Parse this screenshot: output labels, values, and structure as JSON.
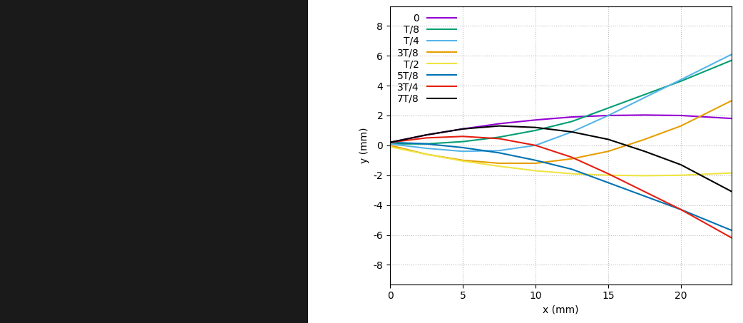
{
  "chart_data": {
    "type": "line",
    "x_label": "x (mm)",
    "y_label": "y (mm)",
    "x": [
      0,
      2.5,
      5,
      7.5,
      10,
      12.5,
      15,
      17.5,
      20,
      23.5
    ],
    "series": [
      {
        "name": "0",
        "color": "#9400d3",
        "values": [
          0.2,
          0.7,
          1.1,
          1.45,
          1.7,
          1.9,
          2.0,
          2.03,
          2.0,
          1.8
        ]
      },
      {
        "name": "T/8",
        "color": "#009e73",
        "values": [
          0.1,
          0.1,
          0.25,
          0.55,
          1.0,
          1.6,
          2.5,
          3.4,
          4.3,
          5.7
        ]
      },
      {
        "name": "T/4",
        "color": "#56b4e9",
        "values": [
          0.1,
          -0.2,
          -0.4,
          -0.35,
          0.0,
          0.9,
          2.0,
          3.2,
          4.4,
          6.1
        ]
      },
      {
        "name": "3T/8",
        "color": "#e69f00",
        "values": [
          0.0,
          -0.6,
          -1.0,
          -1.2,
          -1.2,
          -0.9,
          -0.4,
          0.4,
          1.3,
          3.0
        ]
      },
      {
        "name": "T/2",
        "color": "#f0e442",
        "values": [
          -0.1,
          -0.6,
          -1.05,
          -1.4,
          -1.7,
          -1.9,
          -2.0,
          -2.03,
          -2.0,
          -1.85
        ]
      },
      {
        "name": "5T/8",
        "color": "#0072b2",
        "values": [
          0.2,
          0.1,
          -0.15,
          -0.5,
          -1.0,
          -1.6,
          -2.5,
          -3.4,
          -4.3,
          -5.7
        ]
      },
      {
        "name": "3T/4",
        "color": "#e51e10",
        "values": [
          0.2,
          0.5,
          0.6,
          0.45,
          0.0,
          -0.8,
          -1.9,
          -3.1,
          -4.3,
          -6.2
        ]
      },
      {
        "name": "7T/8",
        "color": "#000000",
        "values": [
          0.2,
          0.7,
          1.1,
          1.3,
          1.2,
          0.9,
          0.4,
          -0.4,
          -1.3,
          -3.1
        ]
      }
    ],
    "xlim": [
      0,
      23.5
    ],
    "xticks": [
      0,
      5,
      10,
      15,
      20
    ],
    "ylim": [
      -9.3,
      9.3
    ],
    "yticks": [
      -8,
      -6,
      -4,
      -2,
      0,
      2,
      4,
      6,
      8
    ],
    "grid": true,
    "legend": "upper left"
  }
}
